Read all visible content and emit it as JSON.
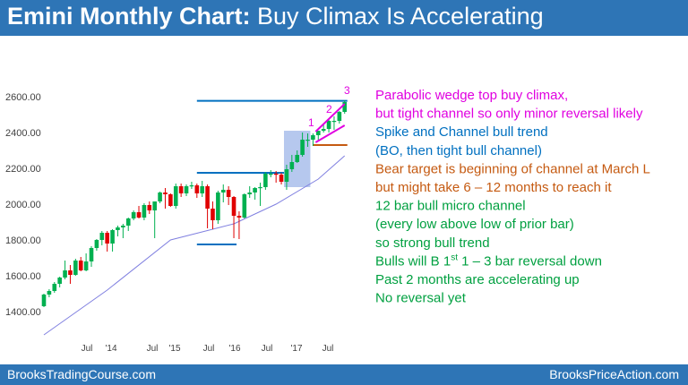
{
  "title": {
    "bold": "Emini Monthly Chart:",
    "rest": " Buy Climax Is Accelerating"
  },
  "footer": {
    "left": "BrooksTradingCourse.com",
    "right": "BrooksPriceAction.com"
  },
  "colors": {
    "up": "#00b050",
    "down": "#e00000",
    "blue_line": "#0070c0",
    "ema": "#8080e0",
    "wedge": "#e000e0",
    "orange": "#c55a11",
    "box": "#9db5e8"
  },
  "chart_data": {
    "type": "candlestick",
    "title": "Emini Monthly Chart: Buy Climax Is Accelerating",
    "ylim": [
      1250,
      2650
    ],
    "y_ticks": [
      "1400.00",
      "1600.00",
      "1800.00",
      "2000.00",
      "2200.00",
      "2400.00",
      "2600.00"
    ],
    "x_ticks": [
      "Jul",
      "'14",
      "Jul",
      "'15",
      "Jul",
      "'16",
      "Jul",
      "'17",
      "Jul"
    ],
    "start": "Jan 2013",
    "candles": [
      [
        1430,
        1500,
        1425,
        1495
      ],
      [
        1495,
        1525,
        1480,
        1515
      ],
      [
        1515,
        1565,
        1505,
        1555
      ],
      [
        1555,
        1595,
        1535,
        1590
      ],
      [
        1590,
        1685,
        1580,
        1630
      ],
      [
        1630,
        1660,
        1555,
        1605
      ],
      [
        1605,
        1695,
        1600,
        1685
      ],
      [
        1685,
        1705,
        1625,
        1630
      ],
      [
        1630,
        1725,
        1625,
        1680
      ],
      [
        1680,
        1765,
        1650,
        1755
      ],
      [
        1755,
        1805,
        1740,
        1800
      ],
      [
        1800,
        1850,
        1770,
        1840
      ],
      [
        1840,
        1850,
        1735,
        1780
      ],
      [
        1780,
        1860,
        1735,
        1855
      ],
      [
        1855,
        1880,
        1820,
        1870
      ],
      [
        1870,
        1890,
        1810,
        1880
      ],
      [
        1880,
        1925,
        1850,
        1920
      ],
      [
        1920,
        1965,
        1910,
        1955
      ],
      [
        1955,
        1990,
        1920,
        1925
      ],
      [
        1925,
        2005,
        1910,
        1995
      ],
      [
        1995,
        2015,
        1945,
        1965
      ],
      [
        1965,
        2015,
        1810,
        2015
      ],
      [
        2015,
        2070,
        2005,
        2065
      ],
      [
        2065,
        2090,
        1975,
        2055
      ],
      [
        2055,
        2060,
        1985,
        1990
      ],
      [
        1990,
        2115,
        1975,
        2100
      ],
      [
        2100,
        2115,
        2040,
        2060
      ],
      [
        2060,
        2110,
        2045,
        2100
      ],
      [
        2100,
        2125,
        2085,
        2105
      ],
      [
        2105,
        2115,
        2035,
        2060
      ],
      [
        2060,
        2130,
        2040,
        2100
      ],
      [
        2100,
        2110,
        1865,
        1975
      ],
      [
        1975,
        2015,
        1860,
        1910
      ],
      [
        1910,
        2075,
        1890,
        2065
      ],
      [
        2065,
        2110,
        2010,
        2080
      ],
      [
        2080,
        2100,
        1995,
        2040
      ],
      [
        2040,
        2045,
        1810,
        1935
      ],
      [
        1935,
        1960,
        1805,
        1925
      ],
      [
        1925,
        2060,
        1920,
        2055
      ],
      [
        2055,
        2100,
        2035,
        2065
      ],
      [
        2065,
        2095,
        2025,
        2090
      ],
      [
        2090,
        2120,
        1990,
        2095
      ],
      [
        2095,
        2180,
        2080,
        2170
      ],
      [
        2170,
        2190,
        2150,
        2170
      ],
      [
        2170,
        2185,
        2120,
        2165
      ],
      [
        2165,
        2175,
        2110,
        2125
      ],
      [
        2125,
        2220,
        2080,
        2195
      ],
      [
        2195,
        2275,
        2180,
        2235
      ],
      [
        2235,
        2300,
        2230,
        2275
      ],
      [
        2275,
        2400,
        2265,
        2360
      ],
      [
        2360,
        2395,
        2320,
        2360
      ],
      [
        2360,
        2395,
        2325,
        2385
      ],
      [
        2385,
        2410,
        2350,
        2410
      ],
      [
        2410,
        2450,
        2400,
        2420
      ],
      [
        2420,
        2480,
        2400,
        2465
      ],
      [
        2465,
        2490,
        2415,
        2465
      ],
      [
        2465,
        2520,
        2450,
        2515
      ],
      [
        2515,
        2580,
        2505,
        2570
      ]
    ],
    "ema_20": [
      [
        0,
        1270
      ],
      [
        12,
        1520
      ],
      [
        24,
        1800
      ],
      [
        36,
        1890
      ],
      [
        44,
        2000
      ],
      [
        52,
        2140
      ],
      [
        57,
        2270
      ]
    ],
    "lines": [
      {
        "name": "upper target line",
        "y": 2577,
        "from": 29,
        "to": 57
      },
      {
        "name": "middle line",
        "y": 2175,
        "from": 29,
        "to": 45
      },
      {
        "name": "lower line",
        "y": 1775,
        "from": 29,
        "to": 36
      },
      {
        "name": "March low",
        "y": 2330,
        "from": 51,
        "to": 57
      }
    ],
    "box": {
      "from": 45.5,
      "to": 50.5,
      "low": 2095,
      "high": 2410
    },
    "wedge": {
      "upper": [
        [
          51.5,
          2405
        ],
        [
          57,
          2560
        ]
      ],
      "lower": [
        [
          51.5,
          2345
        ],
        [
          57,
          2440
        ]
      ],
      "labels": [
        "1",
        "2",
        "3"
      ]
    },
    "annotations": [
      {
        "text": "Parabolic wedge top buy climax,",
        "color": "#e000e0"
      },
      {
        "text": "but tight channel so only minor reversal likely",
        "color": "#e000e0"
      },
      {
        "text": "Spike and Channel bull trend",
        "color": "#0070c0"
      },
      {
        "text": "(BO, then tight bull channel)",
        "color": "#0070c0"
      },
      {
        "text": "Bear target is beginning of channel at March L",
        "color": "#c55a11"
      },
      {
        "text": "but might take 6 – 12 months to reach it",
        "color": "#c55a11"
      },
      {
        "text": "12 bar bull micro channel",
        "color": "#00a040"
      },
      {
        "text": "(every low above low of prior bar)",
        "color": "#00a040"
      },
      {
        "text": "so strong bull trend",
        "color": "#00a040"
      },
      {
        "text": "Bulls will B 1",
        "color": "#00a040",
        "sup": "st",
        "tail": " 1 – 3 bar reversal down"
      },
      {
        "text": "Past 2 months are accelerating up",
        "color": "#00a040"
      },
      {
        "text": "No reversal yet",
        "color": "#00a040"
      }
    ]
  }
}
